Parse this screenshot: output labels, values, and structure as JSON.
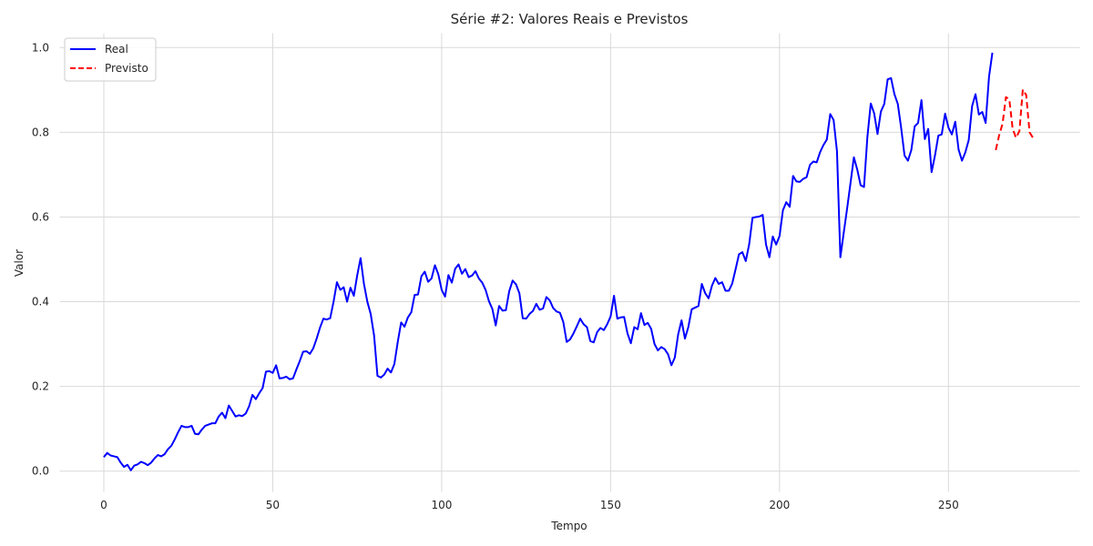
{
  "chart_data": {
    "type": "line",
    "title": "Série #2: Valores Reais e Previstos",
    "xlabel": "Tempo",
    "ylabel": "Valor",
    "xlim": [
      -13.2,
      289.0
    ],
    "ylim": [
      -0.05,
      1.035
    ],
    "xticks": [
      0,
      50,
      100,
      150,
      200,
      250
    ],
    "yticks": [
      0.0,
      0.2,
      0.4,
      0.6,
      0.8,
      1.0
    ],
    "ytick_labels": [
      "0.0",
      "0.2",
      "0.4",
      "0.6",
      "0.8",
      "1.0"
    ],
    "grid": true,
    "legend_position": "top-left",
    "series": [
      {
        "name": "Real",
        "color": "#0000ff",
        "style": "solid",
        "x_start": 0,
        "values": [
          0.033,
          0.043,
          0.037,
          0.035,
          0.033,
          0.02,
          0.01,
          0.015,
          0.002,
          0.013,
          0.016,
          0.022,
          0.019,
          0.014,
          0.02,
          0.03,
          0.038,
          0.035,
          0.04,
          0.052,
          0.06,
          0.075,
          0.092,
          0.107,
          0.104,
          0.104,
          0.107,
          0.088,
          0.087,
          0.098,
          0.107,
          0.11,
          0.113,
          0.113,
          0.129,
          0.138,
          0.125,
          0.155,
          0.142,
          0.129,
          0.132,
          0.13,
          0.136,
          0.153,
          0.18,
          0.17,
          0.184,
          0.196,
          0.235,
          0.236,
          0.232,
          0.25,
          0.219,
          0.22,
          0.223,
          0.217,
          0.219,
          0.24,
          0.26,
          0.282,
          0.283,
          0.277,
          0.29,
          0.313,
          0.339,
          0.36,
          0.358,
          0.361,
          0.4,
          0.446,
          0.428,
          0.434,
          0.4,
          0.433,
          0.414,
          0.462,
          0.503,
          0.442,
          0.4,
          0.371,
          0.32,
          0.225,
          0.221,
          0.228,
          0.242,
          0.233,
          0.253,
          0.305,
          0.351,
          0.341,
          0.363,
          0.375,
          0.416,
          0.417,
          0.46,
          0.471,
          0.447,
          0.455,
          0.486,
          0.465,
          0.428,
          0.412,
          0.463,
          0.445,
          0.478,
          0.488,
          0.466,
          0.477,
          0.458,
          0.462,
          0.472,
          0.455,
          0.445,
          0.428,
          0.401,
          0.383,
          0.344,
          0.39,
          0.379,
          0.38,
          0.425,
          0.45,
          0.441,
          0.42,
          0.361,
          0.36,
          0.371,
          0.378,
          0.395,
          0.381,
          0.384,
          0.411,
          0.403,
          0.385,
          0.377,
          0.374,
          0.352,
          0.305,
          0.311,
          0.325,
          0.342,
          0.36,
          0.347,
          0.34,
          0.307,
          0.304,
          0.328,
          0.338,
          0.333,
          0.347,
          0.365,
          0.414,
          0.36,
          0.363,
          0.364,
          0.325,
          0.302,
          0.34,
          0.335,
          0.373,
          0.345,
          0.35,
          0.336,
          0.3,
          0.285,
          0.293,
          0.288,
          0.276,
          0.25,
          0.268,
          0.323,
          0.356,
          0.313,
          0.34,
          0.382,
          0.386,
          0.39,
          0.442,
          0.42,
          0.408,
          0.438,
          0.456,
          0.442,
          0.446,
          0.426,
          0.426,
          0.443,
          0.477,
          0.512,
          0.517,
          0.496,
          0.535,
          0.598,
          0.6,
          0.601,
          0.605,
          0.535,
          0.505,
          0.554,
          0.535,
          0.555,
          0.616,
          0.635,
          0.624,
          0.697,
          0.684,
          0.683,
          0.69,
          0.694,
          0.723,
          0.731,
          0.729,
          0.753,
          0.77,
          0.783,
          0.843,
          0.829,
          0.755,
          0.505,
          0.563,
          0.62,
          0.68,
          0.741,
          0.712,
          0.675,
          0.671,
          0.789,
          0.868,
          0.845,
          0.796,
          0.849,
          0.867,
          0.925,
          0.928,
          0.89,
          0.867,
          0.81,
          0.745,
          0.733,
          0.758,
          0.814,
          0.822,
          0.876,
          0.784,
          0.808,
          0.706,
          0.745,
          0.792,
          0.795,
          0.844,
          0.811,
          0.795,
          0.825,
          0.759,
          0.733,
          0.753,
          0.782,
          0.862,
          0.89,
          0.842,
          0.848,
          0.822,
          0.931,
          0.988
        ]
      },
      {
        "name": "Previsto",
        "color": "#ff0000",
        "style": "dashed",
        "x_start": 264,
        "values": [
          0.758,
          0.793,
          0.82,
          0.883,
          0.878,
          0.808,
          0.787,
          0.803,
          0.901,
          0.888,
          0.8,
          0.787
        ]
      }
    ]
  }
}
